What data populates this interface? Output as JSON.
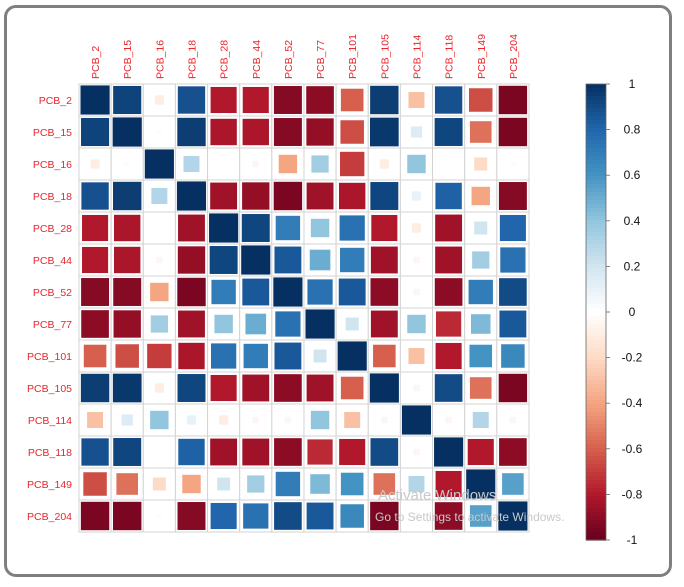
{
  "chart_data": {
    "type": "heatmap",
    "variables": [
      "PCB_2",
      "PCB_15",
      "PCB_16",
      "PCB_18",
      "PCB_28",
      "PCB_44",
      "PCB_52",
      "PCB_77",
      "PCB_101",
      "PCB_105",
      "PCB_114",
      "PCB_118",
      "PCB_149",
      "PCB_204"
    ],
    "matrix": [
      [
        1.0,
        0.93,
        -0.1,
        0.88,
        -0.8,
        -0.8,
        -0.92,
        -0.9,
        -0.6,
        0.95,
        -0.3,
        0.88,
        -0.65,
        -0.95
      ],
      [
        0.93,
        1.0,
        0.02,
        0.95,
        -0.82,
        -0.82,
        -0.92,
        -0.88,
        -0.65,
        0.97,
        0.15,
        0.92,
        -0.55,
        -0.95
      ],
      [
        -0.1,
        0.02,
        1.0,
        0.3,
        0.0,
        -0.05,
        -0.4,
        0.35,
        -0.7,
        -0.1,
        0.4,
        0.0,
        -0.2,
        0.02
      ],
      [
        0.88,
        0.95,
        0.3,
        1.0,
        -0.85,
        -0.88,
        -0.95,
        -0.85,
        -0.82,
        0.92,
        0.1,
        0.82,
        -0.4,
        -0.92
      ],
      [
        -0.8,
        -0.82,
        0.0,
        -0.85,
        1.0,
        0.92,
        0.7,
        0.4,
        0.75,
        -0.8,
        -0.1,
        -0.85,
        0.2,
        0.8
      ],
      [
        -0.8,
        -0.82,
        -0.05,
        -0.88,
        0.92,
        1.0,
        0.85,
        0.5,
        0.7,
        -0.85,
        -0.05,
        -0.85,
        0.35,
        0.75
      ],
      [
        -0.92,
        -0.92,
        -0.4,
        -0.95,
        0.7,
        0.85,
        1.0,
        0.75,
        0.85,
        -0.9,
        0.05,
        -0.9,
        0.7,
        0.9
      ],
      [
        -0.9,
        -0.88,
        0.35,
        -0.85,
        0.4,
        0.5,
        0.75,
        1.0,
        0.2,
        -0.85,
        0.4,
        -0.75,
        0.45,
        0.85
      ],
      [
        -0.6,
        -0.65,
        -0.7,
        -0.82,
        0.75,
        0.7,
        0.85,
        0.2,
        1.0,
        -0.6,
        -0.3,
        -0.8,
        0.6,
        0.65
      ],
      [
        0.95,
        0.97,
        -0.1,
        0.92,
        -0.8,
        -0.85,
        -0.9,
        -0.85,
        -0.6,
        1.0,
        0.05,
        0.9,
        -0.55,
        -0.95
      ],
      [
        -0.3,
        0.15,
        0.4,
        0.1,
        -0.1,
        -0.05,
        0.05,
        0.4,
        -0.3,
        0.05,
        1.0,
        -0.05,
        0.3,
        0.05
      ],
      [
        0.88,
        0.92,
        0.0,
        0.82,
        -0.85,
        -0.85,
        -0.9,
        -0.75,
        -0.8,
        0.9,
        -0.05,
        1.0,
        -0.8,
        -0.9
      ],
      [
        -0.65,
        -0.55,
        -0.2,
        -0.4,
        0.2,
        0.35,
        0.7,
        0.45,
        0.6,
        -0.55,
        0.3,
        -0.8,
        1.0,
        0.55
      ],
      [
        -0.95,
        -0.95,
        0.02,
        -0.92,
        0.8,
        0.75,
        0.9,
        0.85,
        0.65,
        -0.95,
        0.05,
        -0.9,
        0.55,
        1.0
      ]
    ],
    "color_scale": {
      "min": -1,
      "max": 1,
      "ticks": [
        "1",
        "0.8",
        "0.6",
        "0.4",
        "0.2",
        "0",
        "-0.2",
        "-0.4",
        "-0.6",
        "-0.8",
        "-1"
      ],
      "stops": [
        {
          "v": -1.0,
          "color": "#67001f"
        },
        {
          "v": -0.8,
          "color": "#b2182b"
        },
        {
          "v": -0.6,
          "color": "#d6604d"
        },
        {
          "v": -0.4,
          "color": "#f4a582"
        },
        {
          "v": -0.2,
          "color": "#fddbc7"
        },
        {
          "v": 0.0,
          "color": "#ffffff"
        },
        {
          "v": 0.2,
          "color": "#d1e5f0"
        },
        {
          "v": 0.4,
          "color": "#92c5de"
        },
        {
          "v": 0.6,
          "color": "#4393c3"
        },
        {
          "v": 0.8,
          "color": "#2166ac"
        },
        {
          "v": 1.0,
          "color": "#053061"
        }
      ]
    },
    "label_color": "#e8262b",
    "grid": true,
    "legend": "right"
  },
  "watermark": {
    "line1": "Activate Windows",
    "line2": "Go to Settings to activate Windows."
  }
}
